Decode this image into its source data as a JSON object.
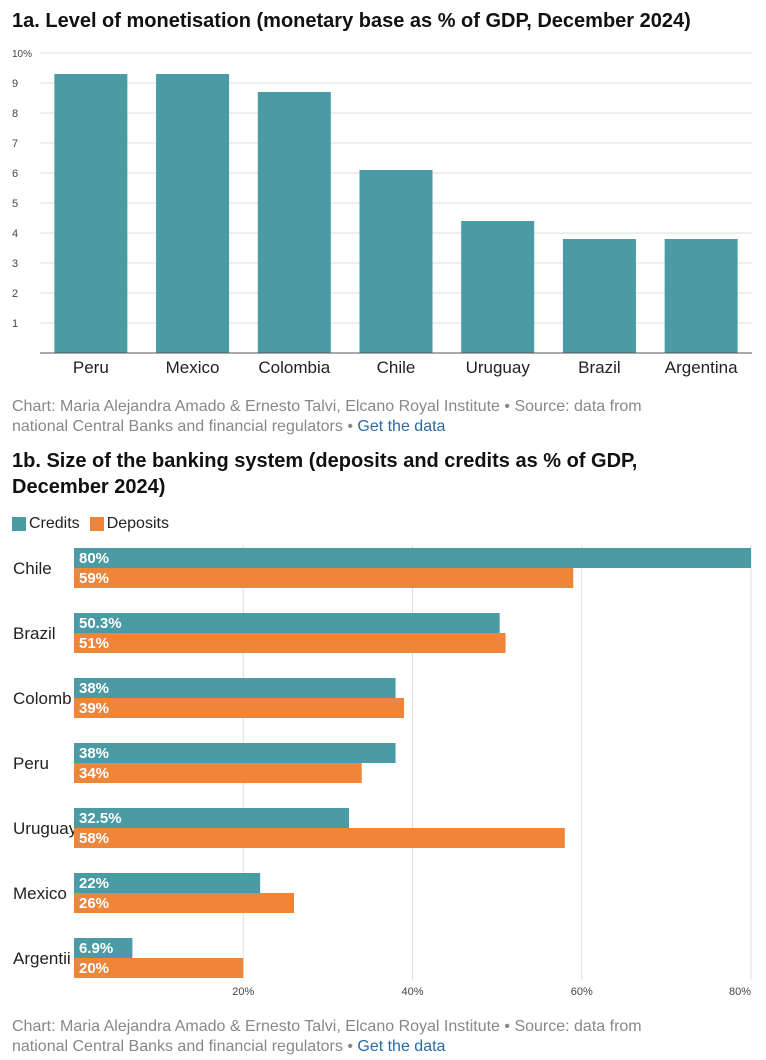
{
  "charts": [
    {
      "title": "1a. Level of monetisation (monetary base as % of GDP, December 2024)",
      "credit_prefix": "Chart: Maria Alejandra Amado & Ernesto Talvi, Elcano Royal Institute • Source: data from",
      "credit_line2": "national Central Banks and financial regulators •",
      "get_data": "Get the data"
    },
    {
      "title_line1": "1b. Size of the banking system (deposits and credits as % of GDP,",
      "title_line2": "December 2024)",
      "credit_prefix": "Chart: Maria Alejandra Amado & Ernesto Talvi, Elcano Royal Institute • Source: data from",
      "credit_line2": "national Central Banks and financial regulators •",
      "get_data": "Get the data"
    }
  ],
  "colors": {
    "teal": "#4a9ba3",
    "orange": "#ef8539",
    "grid": "#dddddd"
  },
  "chart_data": [
    {
      "type": "bar",
      "title": "1a. Level of monetisation (monetary base as % of GDP, December 2024)",
      "categories": [
        "Peru",
        "Mexico",
        "Colombia",
        "Chile",
        "Uruguay",
        "Brazil",
        "Argentina"
      ],
      "values": [
        9.3,
        9.3,
        8.7,
        6.1,
        4.4,
        3.8,
        3.8
      ],
      "yticks": [
        "1",
        "2",
        "3",
        "4",
        "5",
        "6",
        "7",
        "8",
        "9",
        "10%"
      ],
      "ylim": [
        0,
        10
      ],
      "grid": true
    },
    {
      "type": "bar",
      "orientation": "horizontal",
      "title": "1b. Size of the banking system (deposits and credits as % of GDP, December 2024)",
      "categories": [
        "Chile",
        "Brazil",
        "Colomb",
        "Peru",
        "Uruguay",
        "Mexico",
        "Argentii"
      ],
      "series": [
        {
          "name": "Credits",
          "values": [
            80,
            50.3,
            38,
            38,
            32.5,
            22,
            6.9
          ],
          "labels": [
            "80%",
            "50.3%",
            "38%",
            "38%",
            "32.5%",
            "22%",
            "6.9%"
          ]
        },
        {
          "name": "Deposits",
          "values": [
            59,
            51,
            39,
            34,
            58,
            26,
            20
          ],
          "labels": [
            "59%",
            "51%",
            "39%",
            "34%",
            "58%",
            "26%",
            "20%"
          ]
        }
      ],
      "xticks": [
        "20%",
        "40%",
        "60%",
        "80%"
      ],
      "xlim": [
        0,
        80
      ],
      "legend": "top-left",
      "grid": true
    }
  ]
}
